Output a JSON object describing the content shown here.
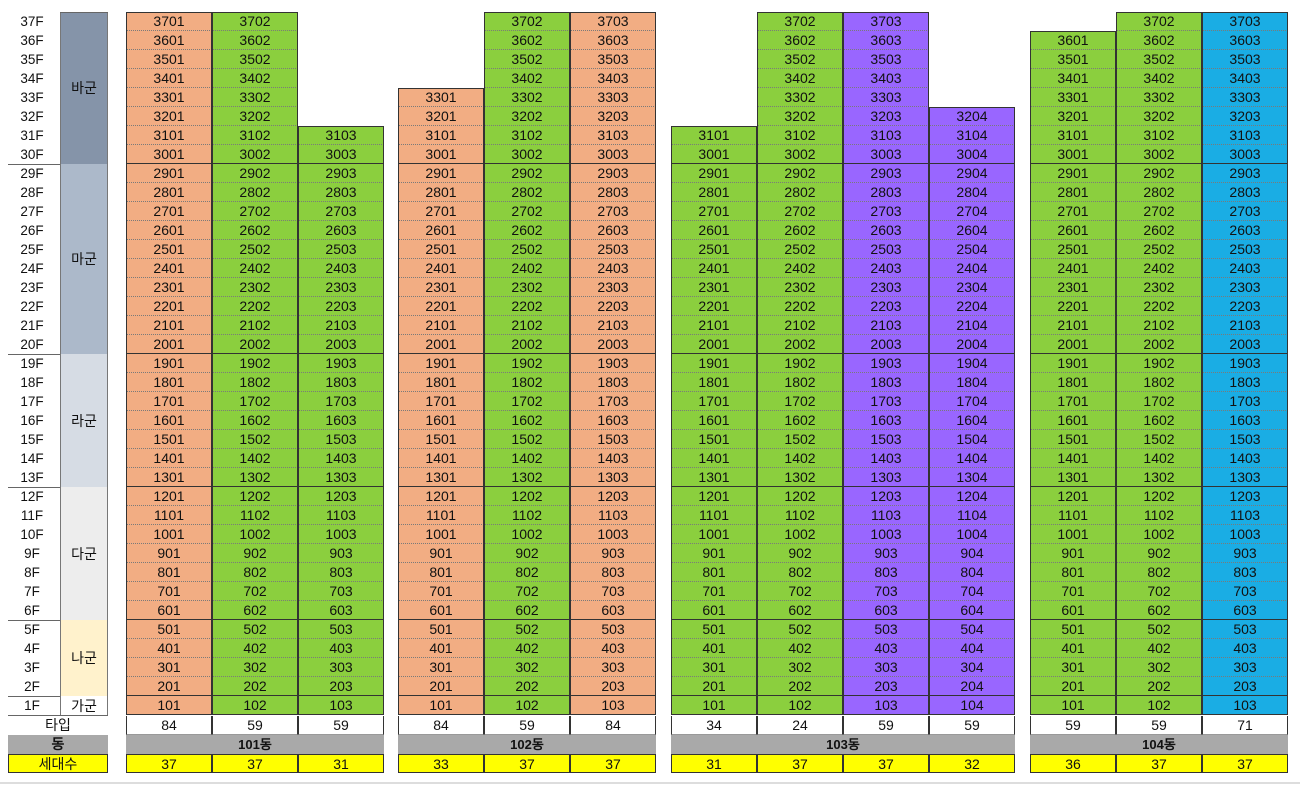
{
  "floors": [
    "37F",
    "36F",
    "35F",
    "34F",
    "33F",
    "32F",
    "31F",
    "30F",
    "29F",
    "28F",
    "27F",
    "26F",
    "25F",
    "24F",
    "23F",
    "22F",
    "21F",
    "20F",
    "19F",
    "18F",
    "17F",
    "16F",
    "15F",
    "14F",
    "13F",
    "12F",
    "11F",
    "10F",
    "9F",
    "8F",
    "7F",
    "6F",
    "5F",
    "4F",
    "3F",
    "2F",
    "1F"
  ],
  "groups": [
    {
      "label": "바군",
      "top_floor": 37,
      "bottom_floor": 30,
      "color": "#8594A9"
    },
    {
      "label": "마군",
      "top_floor": 29,
      "bottom_floor": 20,
      "color": "#ACB9CA"
    },
    {
      "label": "라군",
      "top_floor": 19,
      "bottom_floor": 13,
      "color": "#D6DCE4"
    },
    {
      "label": "다군",
      "top_floor": 12,
      "bottom_floor": 6,
      "color": "#EDEDED"
    },
    {
      "label": "나군",
      "top_floor": 5,
      "bottom_floor": 2,
      "color": "#FFF2CC"
    },
    {
      "label": "가군",
      "top_floor": 1,
      "bottom_floor": 1,
      "color": "#FFFFFF"
    }
  ],
  "labels": {
    "type": "타입",
    "building": "동",
    "households": "세대수"
  },
  "colors": {
    "orange": "#F2AD83",
    "green": "#8BCF3E",
    "purple": "#9966FF",
    "blue": "#1AADE4",
    "yellow": "#FFFF00",
    "gray": "#A9A9A9"
  },
  "buildings": [
    {
      "name": "101동",
      "columns": [
        {
          "line": 1,
          "top_floor": 37,
          "color": "orange",
          "type": "84",
          "households": "37"
        },
        {
          "line": 2,
          "top_floor": 37,
          "color": "green",
          "type": "59",
          "households": "37"
        },
        {
          "line": 3,
          "top_floor": 31,
          "color": "green",
          "type": "59",
          "households": "31"
        }
      ]
    },
    {
      "name": "102동",
      "columns": [
        {
          "line": 1,
          "top_floor": 33,
          "color": "orange",
          "type": "84",
          "households": "33"
        },
        {
          "line": 2,
          "top_floor": 37,
          "color": "green",
          "type": "59",
          "households": "37"
        },
        {
          "line": 3,
          "top_floor": 37,
          "color": "orange",
          "type": "84",
          "households": "37"
        }
      ]
    },
    {
      "name": "103동",
      "columns": [
        {
          "line": 1,
          "top_floor": 31,
          "color": "green",
          "type": "34",
          "households": "31"
        },
        {
          "line": 2,
          "top_floor": 37,
          "color": "green",
          "type": "24",
          "households": "37"
        },
        {
          "line": 3,
          "top_floor": 37,
          "color": "purple",
          "type": "59",
          "households": "37"
        },
        {
          "line": 4,
          "top_floor": 32,
          "color": "purple",
          "type": "59",
          "households": "32"
        }
      ]
    },
    {
      "name": "104동",
      "columns": [
        {
          "line": 1,
          "top_floor": 36,
          "color": "green",
          "type": "59",
          "households": "36"
        },
        {
          "line": 2,
          "top_floor": 37,
          "color": "green",
          "type": "59",
          "households": "37"
        },
        {
          "line": 3,
          "top_floor": 37,
          "color": "blue",
          "type": "71",
          "households": "37"
        }
      ]
    }
  ]
}
